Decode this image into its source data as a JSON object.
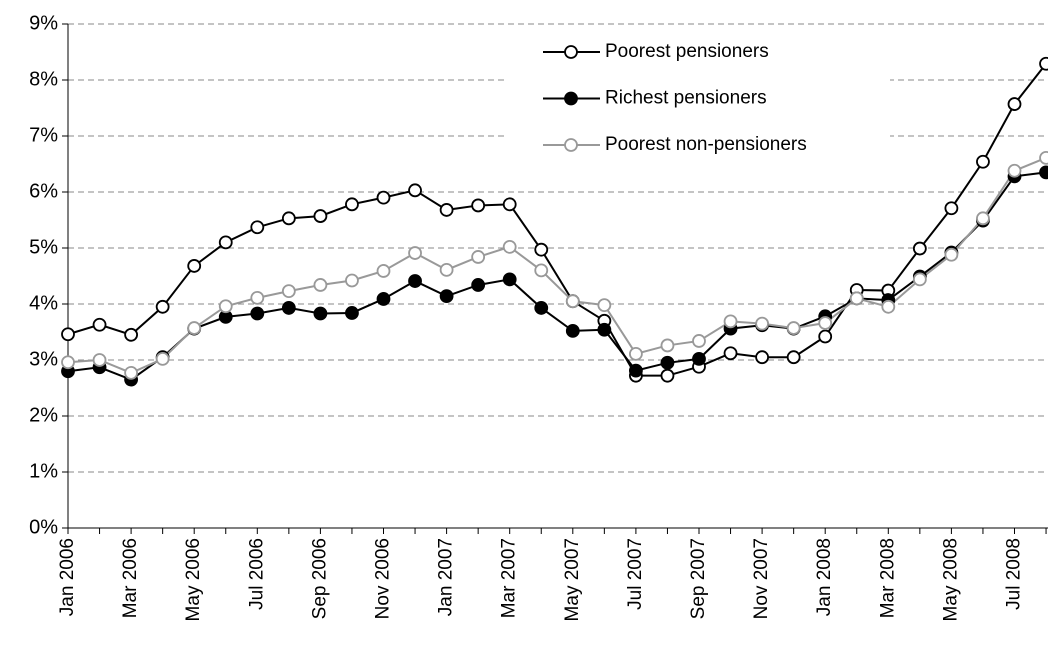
{
  "chart_data": {
    "type": "line",
    "categories": [
      "Jan 2006",
      null,
      "Mar 2006",
      null,
      "May 2006",
      null,
      "Jul 2006",
      null,
      "Sep 2006",
      null,
      "Nov 2006",
      null,
      "Jan 2007",
      null,
      "Mar 2007",
      null,
      "May 2007",
      null,
      "Jul 2007",
      null,
      "Sep 2007",
      null,
      "Nov 2007",
      null,
      "Jan 2008",
      null,
      "Mar 2008",
      null,
      "May 2008",
      null,
      "Jul 2008",
      null
    ],
    "series": [
      {
        "name": "Poorest pensioners",
        "color": "#000000",
        "marker_fill": "#ffffff",
        "values": [
          3.46,
          3.63,
          3.45,
          3.95,
          4.68,
          5.1,
          5.37,
          5.53,
          5.57,
          5.78,
          5.9,
          6.03,
          5.68,
          5.76,
          5.78,
          4.97,
          4.05,
          3.7,
          2.72,
          2.72,
          2.88,
          3.12,
          3.05,
          3.05,
          3.42,
          4.25,
          4.24,
          4.99,
          5.71,
          6.54,
          7.57,
          8.29
        ]
      },
      {
        "name": "Richest pensioners",
        "color": "#000000",
        "marker_fill": "#000000",
        "values": [
          2.8,
          2.87,
          2.65,
          3.05,
          3.56,
          3.77,
          3.83,
          3.93,
          3.83,
          3.84,
          4.09,
          4.41,
          4.14,
          4.34,
          4.44,
          3.93,
          3.52,
          3.54,
          2.81,
          2.95,
          3.02,
          3.56,
          3.62,
          3.56,
          3.78,
          4.1,
          4.07,
          4.49,
          4.92,
          5.49,
          6.28,
          6.35
        ]
      },
      {
        "name": "Poorest non-pensioners",
        "color": "#999999",
        "marker_fill": "#ffffff",
        "values": [
          2.96,
          3.0,
          2.77,
          3.02,
          3.57,
          3.96,
          4.11,
          4.23,
          4.34,
          4.42,
          4.59,
          4.91,
          4.61,
          4.84,
          5.02,
          4.6,
          4.05,
          3.98,
          3.11,
          3.26,
          3.34,
          3.69,
          3.65,
          3.57,
          3.66,
          4.1,
          3.95,
          4.44,
          4.88,
          5.53,
          6.38,
          6.61
        ]
      }
    ],
    "ylim": [
      0,
      9
    ],
    "yticks": [
      {
        "value": 0,
        "label": "0%"
      },
      {
        "value": 1,
        "label": "1%"
      },
      {
        "value": 2,
        "label": "2%"
      },
      {
        "value": 3,
        "label": "3%"
      },
      {
        "value": 4,
        "label": "4%"
      },
      {
        "value": 5,
        "label": "5%"
      },
      {
        "value": 6,
        "label": "6%"
      },
      {
        "value": 7,
        "label": "7%"
      },
      {
        "value": 8,
        "label": "8%"
      },
      {
        "value": 9,
        "label": "9%"
      }
    ],
    "grid": true,
    "legend": "upper right"
  }
}
